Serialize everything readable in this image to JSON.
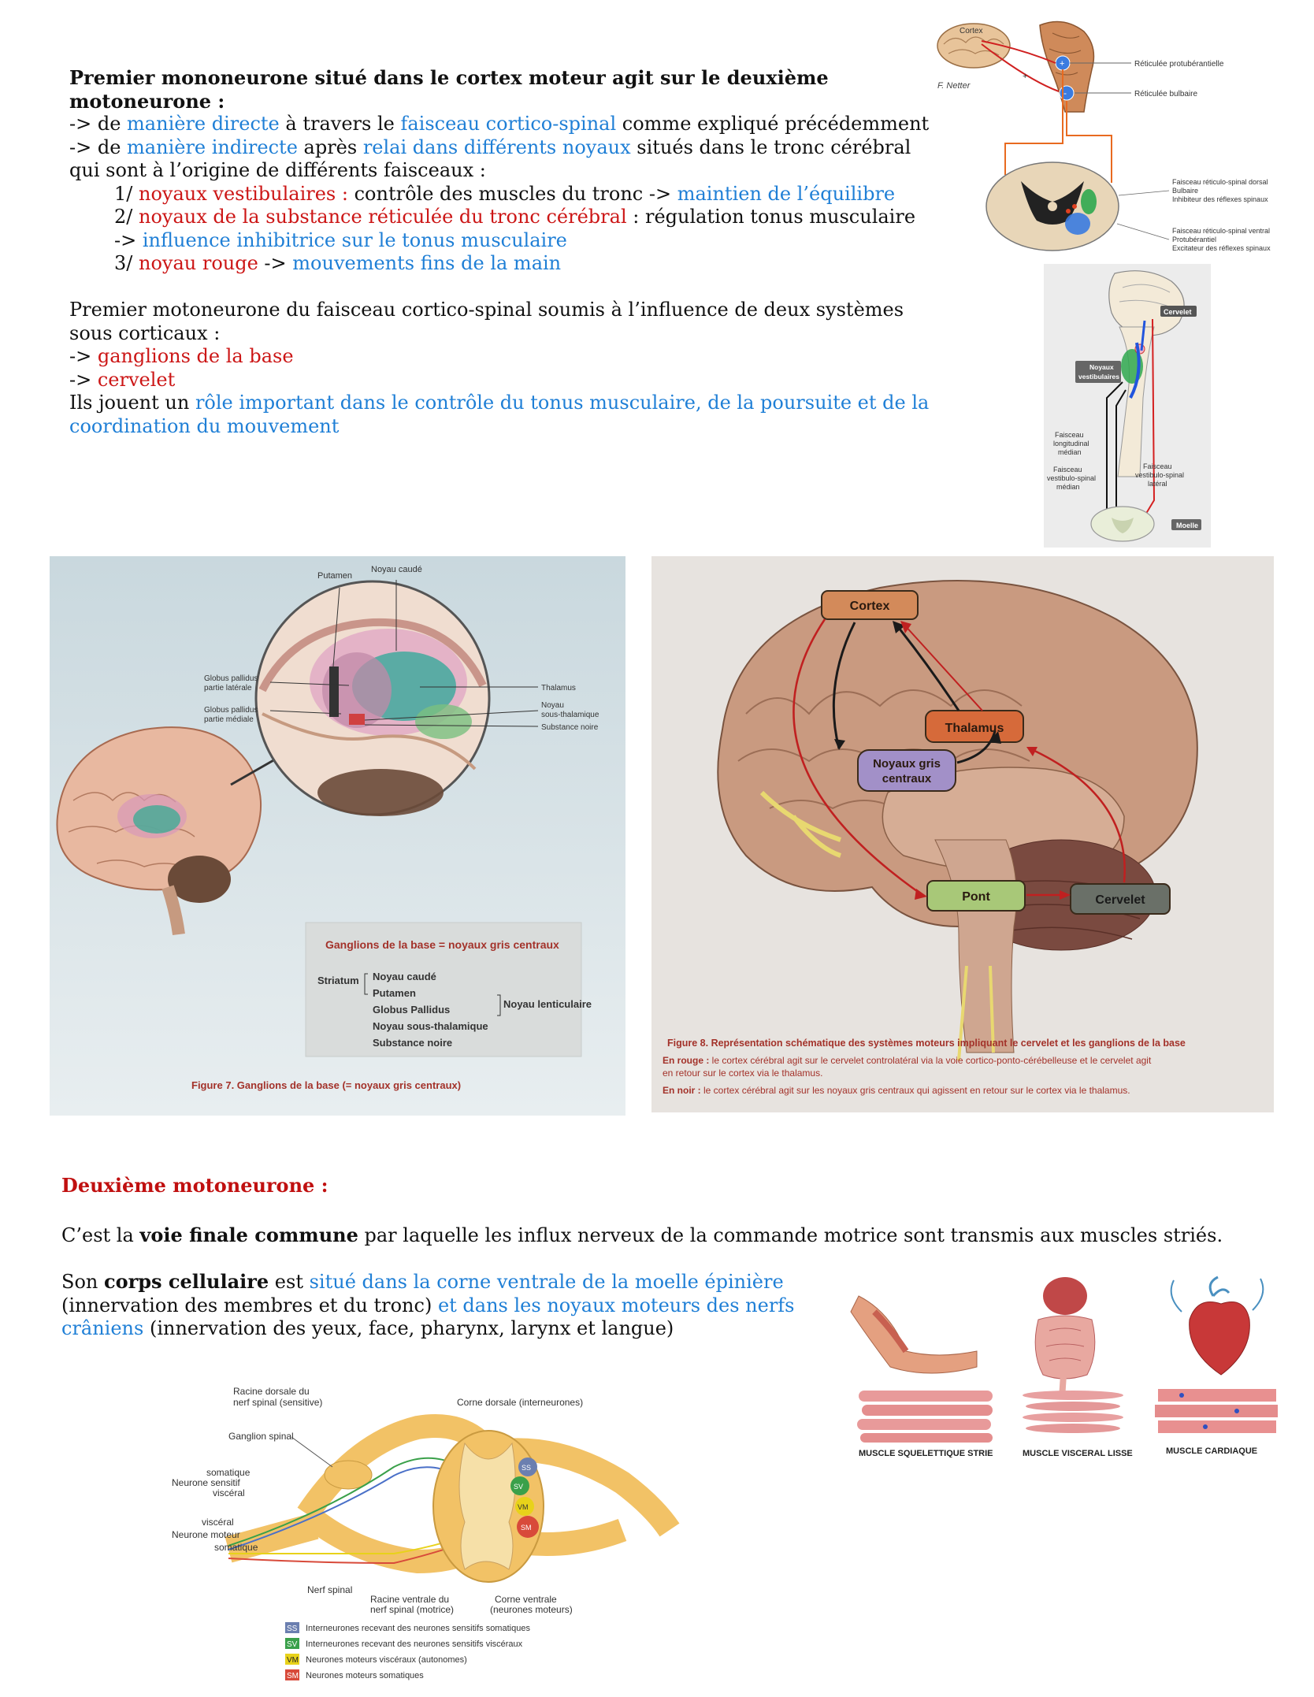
{
  "section1": {
    "heading_line1": "Premier mononeurone situé dans le cortex moteur agit sur le deuxième",
    "heading_line2": "motoneurone :",
    "l1_a": "-> de ",
    "l1_b": "manière directe",
    "l1_c": " à travers le ",
    "l1_d": "faisceau cortico-spinal",
    "l1_e": " comme expliqué précédemment",
    "l2_a": "-> de ",
    "l2_b": "manière indirecte",
    "l2_c": " après ",
    "l2_d": "relai dans différents noyaux",
    "l2_e": " situés dans le tronc cérébral",
    "l3": "qui sont à l’origine de différents faisceaux :",
    "i1_a": "1/ ",
    "i1_b": "noyaux vestibulaires :",
    "i1_c": " contrôle des muscles du tronc -> ",
    "i1_d": "maintien de l’équilibre",
    "i2_a": "2/ ",
    "i2_b": "noyaux de la substance réticulée du tronc cérébral",
    "i2_c": " : régulation tonus musculaire",
    "i3_a": "-> ",
    "i3_b": "influence inhibitrice sur le tonus musculaire",
    "i4_a": "3/ ",
    "i4_b": "noyau rouge",
    "i4_c": " -> ",
    "i4_d": "mouvements fins de la main"
  },
  "section2": {
    "p1_line1": "Premier motoneurone du faisceau cortico-spinal soumis à l’influence de deux systèmes",
    "p1_line2": "sous corticaux :",
    "arrow1": "-> ",
    "item1": "ganglions de la base",
    "arrow2": "-> ",
    "item2": "cervelet",
    "p2_a": "Ils jouent un ",
    "p2_b": "rôle important dans le contrôle du tonus musculaire, de la poursuite et de la",
    "p2_c": "coordination du mouvement"
  },
  "fig_reticular": {
    "cortex": "Cortex",
    "signature": "F. Netter",
    "plus": "+",
    "reticulee_protuberantielle": "Réticulée protubérantielle",
    "reticulee_bulbaire": "Réticulée bulbaire",
    "dorsal_1": "Faisceau réticulo-spinal dorsal",
    "dorsal_2": "Bulbaire",
    "dorsal_3": "Inhibiteur des réflexes spinaux",
    "ventral_1": "Faisceau réticulo-spinal ventral",
    "ventral_2": "Protubérantiel",
    "ventral_3": "Excitateur des réflexes spinaux"
  },
  "fig_vestibular": {
    "cervelet": "Cervelet",
    "noyaux_1": "Noyaux",
    "noyaux_2": "vestibulaires",
    "flm_1": "Faisceau",
    "flm_2": "longitudinal",
    "flm_3": "médian",
    "vsm_1": "Faisceau",
    "vsm_2": "vestibulo-spinal",
    "vsm_3": "médian",
    "vsl_1": "Faisceau",
    "vsl_2": "vestibulo-spinal",
    "vsl_3": "latéral",
    "moelle": "Moelle"
  },
  "fig7": {
    "putamen": "Putamen",
    "noyau_caude": "Noyau caudé",
    "gp_lat_1": "Globus pallidus",
    "gp_lat_2": "partie latérale",
    "gp_med_1": "Globus pallidus",
    "gp_med_2": "partie médiale",
    "thalamus": "Thalamus",
    "noyau_st_1": "Noyau",
    "noyau_st_2": "sous-thalamique",
    "substance_noire": "Substance noire",
    "box_title": "Ganglions de la base = noyaux gris centraux",
    "striatum": "Striatum",
    "list": [
      "Noyau caudé",
      "Putamen",
      "Globus Pallidus",
      "Noyau sous-thalamique",
      "Substance noire"
    ],
    "noyau_lenticulaire": "Noyau lenticulaire",
    "caption": "Figure 7. Ganglions de la base (= noyaux gris centraux)"
  },
  "fig8": {
    "cortex": "Cortex",
    "thalamus": "Thalamus",
    "noyaux_1": "Noyaux gris",
    "noyaux_2": "centraux",
    "pont": "Pont",
    "cervelet": "Cervelet",
    "caption_title": "Figure 8. Représentation schématique des systèmes moteurs impliquant le cervelet et les ganglions de la base",
    "rouge_label": "En rouge :",
    "rouge_1": " le cortex cérébral agit sur le cervelet controlatéral via la voie cortico-ponto-cérébelleuse et le cervelet agit",
    "rouge_2": "en retour sur le cortex via le thalamus.",
    "noir_label": "En noir :",
    "noir_1": " le cortex cérébral agit sur les noyaux gris centraux qui agissent en retour sur le cortex via le thalamus."
  },
  "section3": {
    "heading": "Deuxième motoneurone :",
    "p1_a": "C’est la ",
    "p1_b": "voie finale commune",
    "p1_c": " par laquelle les influx nerveux de la commande motrice sont transmis aux muscles striés.",
    "p2_a": "Son ",
    "p2_b": "corps cellulaire",
    "p2_c": " est ",
    "p2_d": "situé dans la corne ventrale de la moelle épinière",
    "p3_a": "(innervation des membres et du tronc) ",
    "p3_b": "et dans les noyaux moteurs des nerfs",
    "p4_a": "crâniens",
    "p4_b": " (innervation des yeux, face, pharynx, larynx et langue)"
  },
  "fig_muscles": {
    "strie": "MUSCLE SQUELETTIQUE STRIE",
    "lisse": "MUSCLE VISCERAL LISSE",
    "cardiaque": "MUSCLE CARDIAQUE"
  },
  "fig_spinal": {
    "racine_dorsale_1": "Racine dorsale du",
    "racine_dorsale_2": "nerf spinal (sensitive)",
    "corne_dorsale": "Corne dorsale (interneurones)",
    "ganglion": "Ganglion spinal",
    "somatique": "somatique",
    "neurone_sensitif": "Neurone sensitif",
    "visceral": "viscéral",
    "visceral2": "viscéral",
    "neurone_moteur": "Neurone moteur",
    "somatique2": "somatique",
    "nerf_spinal": "Nerf spinal",
    "racine_ventrale_1": "Racine ventrale du",
    "racine_ventrale_2": "nerf spinal (motrice)",
    "corne_ventrale_1": "Corne ventrale",
    "corne_ventrale_2": "(neurones moteurs)",
    "ss": "SS",
    "sv": "SV",
    "vm": "VM",
    "sm": "SM",
    "legend": [
      {
        "code": "SS",
        "text": "Interneurones recevant des neurones sensitifs somatiques",
        "color": "#6b7fb0"
      },
      {
        "code": "SV",
        "text": "Interneurones recevant des neurones sensitifs viscéraux",
        "color": "#3aa04a"
      },
      {
        "code": "VM",
        "text": "Neurones moteurs viscéraux (autonomes)",
        "color": "#e8d21a"
      },
      {
        "code": "SM",
        "text": "Neurones moteurs somatiques",
        "color": "#d84a3a"
      }
    ]
  }
}
